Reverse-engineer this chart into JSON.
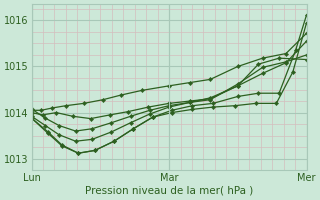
{
  "background_color": "#cce8d8",
  "plot_bg_color": "#cce8d8",
  "grid_major_color": "#a8c8b8",
  "grid_minor_color": "#d4bebe",
  "line_color": "#2d6020",
  "xlabel": "Pression niveau de la mer( hPa )",
  "ylim": [
    1012.75,
    1016.35
  ],
  "xlim": [
    0.0,
    2.0
  ],
  "yticks": [
    1013,
    1014,
    1015,
    1016
  ],
  "xtick_labels": [
    "Lun",
    "Mar",
    "Mer"
  ],
  "xtick_positions": [
    0.0,
    1.0,
    2.0
  ],
  "series": [
    {
      "x": [
        0.0,
        0.07,
        0.15,
        0.25,
        0.38,
        0.52,
        0.65,
        0.8,
        1.0,
        1.15,
        1.3,
        1.5,
        1.68,
        1.85,
        2.0
      ],
      "y": [
        1014.05,
        1014.05,
        1014.1,
        1014.15,
        1014.2,
        1014.28,
        1014.38,
        1014.48,
        1014.58,
        1014.65,
        1014.72,
        1015.0,
        1015.18,
        1015.28,
        1015.72
      ]
    },
    {
      "x": [
        0.0,
        0.08,
        0.18,
        0.3,
        0.43,
        0.57,
        0.7,
        0.85,
        1.0,
        1.15,
        1.3,
        1.5,
        1.68,
        1.85,
        2.0
      ],
      "y": [
        1014.0,
        1013.95,
        1014.0,
        1013.92,
        1013.87,
        1013.95,
        1014.02,
        1014.12,
        1014.2,
        1014.25,
        1014.3,
        1014.58,
        1014.85,
        1015.08,
        1015.55
      ]
    },
    {
      "x": [
        0.0,
        0.1,
        0.2,
        0.32,
        0.44,
        0.58,
        0.72,
        0.86,
        1.0,
        1.15,
        1.3,
        1.5,
        1.68,
        1.85,
        2.0
      ],
      "y": [
        1014.08,
        1013.88,
        1013.72,
        1013.6,
        1013.65,
        1013.78,
        1013.92,
        1014.05,
        1014.15,
        1014.22,
        1014.28,
        1014.62,
        1014.98,
        1015.1,
        1015.25
      ]
    },
    {
      "x": [
        0.0,
        0.1,
        0.2,
        0.32,
        0.44,
        0.58,
        0.72,
        0.86,
        1.0,
        1.15,
        1.3,
        1.5,
        1.65,
        1.8,
        2.0
      ],
      "y": [
        1013.92,
        1013.72,
        1013.52,
        1013.38,
        1013.42,
        1013.58,
        1013.78,
        1013.97,
        1014.12,
        1014.22,
        1014.32,
        1014.58,
        1015.05,
        1015.18,
        1015.15
      ]
    },
    {
      "x": [
        0.0,
        0.12,
        0.22,
        0.34,
        0.46,
        0.6,
        0.74,
        0.88,
        1.02,
        1.17,
        1.32,
        1.5,
        1.65,
        1.8,
        1.92,
        2.0
      ],
      "y": [
        1013.88,
        1013.58,
        1013.3,
        1013.12,
        1013.18,
        1013.38,
        1013.65,
        1013.9,
        1014.05,
        1014.15,
        1014.2,
        1014.35,
        1014.42,
        1014.42,
        1015.35,
        1016.12
      ]
    },
    {
      "x": [
        0.0,
        0.12,
        0.22,
        0.34,
        0.46,
        0.6,
        0.74,
        0.88,
        1.02,
        1.17,
        1.32,
        1.48,
        1.63,
        1.78,
        1.9,
        2.0
      ],
      "y": [
        1013.88,
        1013.55,
        1013.28,
        1013.12,
        1013.18,
        1013.38,
        1013.65,
        1013.9,
        1014.0,
        1014.07,
        1014.12,
        1014.15,
        1014.2,
        1014.2,
        1014.88,
        1015.95
      ]
    }
  ]
}
